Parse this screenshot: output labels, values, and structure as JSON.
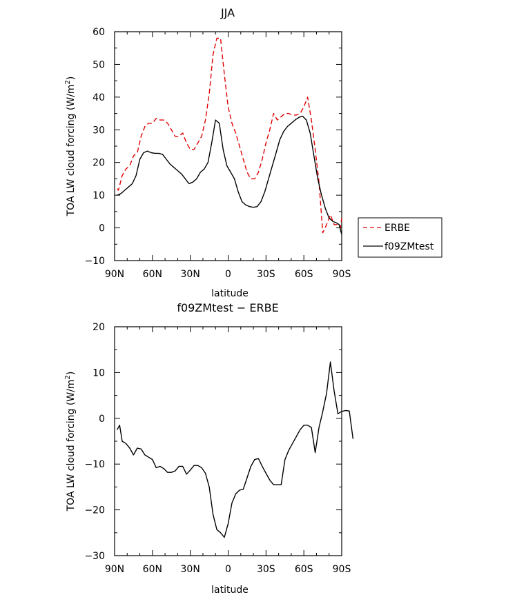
{
  "chart_data": [
    {
      "type": "line",
      "title": "JJA",
      "xlabel": "latitude",
      "ylabel": "TOA LW cloud forcing (W/m²)",
      "ylabel_parts": [
        "TOA LW cloud forcing (W/m",
        "2",
        ")"
      ],
      "xlim": [
        90,
        -90
      ],
      "ylim": [
        -10,
        60
      ],
      "xticks": [
        90,
        60,
        30,
        0,
        -30,
        -60,
        -90
      ],
      "xtick_labels": [
        "90N",
        "60N",
        "30N",
        "0",
        "30S",
        "60S",
        "90S"
      ],
      "yticks": [
        -10,
        0,
        10,
        20,
        30,
        40,
        50,
        60
      ],
      "ytick_labels": [
        "−10",
        "0",
        "10",
        "20",
        "30",
        "40",
        "50",
        "60"
      ],
      "legend_position": "right",
      "series": [
        {
          "name": "ERBE",
          "color": "#e00000",
          "dash": "dashed",
          "points": [
            [
              88,
              12
            ],
            [
              87,
              11.5
            ],
            [
              84,
              16
            ],
            [
              81,
              18
            ],
            [
              78,
              19
            ],
            [
              75,
              22
            ],
            [
              72,
              23
            ],
            [
              69,
              28
            ],
            [
              66,
              31
            ],
            [
              63,
              32
            ],
            [
              60,
              32
            ],
            [
              57,
              33.5
            ],
            [
              54,
              33
            ],
            [
              51,
              33
            ],
            [
              48,
              32
            ],
            [
              45,
              30
            ],
            [
              42,
              28
            ],
            [
              39,
              28
            ],
            [
              36,
              29
            ],
            [
              33,
              26
            ],
            [
              30,
              24
            ],
            [
              27,
              24
            ],
            [
              24,
              26
            ],
            [
              21,
              28
            ],
            [
              18,
              33
            ],
            [
              15,
              41
            ],
            [
              12,
              53
            ],
            [
              9,
              58
            ],
            [
              6,
              58
            ],
            [
              3,
              47
            ],
            [
              0,
              37
            ],
            [
              -3,
              32
            ],
            [
              -6,
              29
            ],
            [
              -9,
              25
            ],
            [
              -12,
              21
            ],
            [
              -15,
              17
            ],
            [
              -18,
              15
            ],
            [
              -21,
              15
            ],
            [
              -24,
              17
            ],
            [
              -27,
              21
            ],
            [
              -30,
              26
            ],
            [
              -33,
              30
            ],
            [
              -36,
              35
            ],
            [
              -39,
              33
            ],
            [
              -42,
              34
            ],
            [
              -45,
              35
            ],
            [
              -48,
              35
            ],
            [
              -51,
              34.5
            ],
            [
              -54,
              34.5
            ],
            [
              -57,
              35
            ],
            [
              -60,
              37
            ],
            [
              -63,
              40
            ],
            [
              -66,
              33
            ],
            [
              -69,
              24
            ],
            [
              -72,
              14
            ],
            [
              -75,
              -1.5
            ],
            [
              -78,
              1
            ],
            [
              -81,
              4
            ],
            [
              -84,
              1
            ],
            [
              -87,
              1
            ],
            [
              -89,
              0
            ],
            [
              -90,
              3
            ]
          ]
        },
        {
          "name": "f09ZMtest",
          "color": "#000000",
          "dash": "solid",
          "points": [
            [
              88,
              10
            ],
            [
              85,
              10.5
            ],
            [
              82,
              11.5
            ],
            [
              79,
              12.5
            ],
            [
              76,
              13.5
            ],
            [
              73,
              16
            ],
            [
              70,
              21
            ],
            [
              67,
              23
            ],
            [
              64,
              23.5
            ],
            [
              61,
              23
            ],
            [
              58,
              22.8
            ],
            [
              55,
              22.8
            ],
            [
              52,
              22.5
            ],
            [
              49,
              21
            ],
            [
              46,
              19.5
            ],
            [
              43,
              18.5
            ],
            [
              40,
              17.5
            ],
            [
              37,
              16.5
            ],
            [
              34,
              15
            ],
            [
              31,
              13.5
            ],
            [
              28,
              14
            ],
            [
              25,
              15
            ],
            [
              22,
              17
            ],
            [
              19,
              18
            ],
            [
              16,
              20
            ],
            [
              13,
              26
            ],
            [
              10,
              33
            ],
            [
              7,
              32
            ],
            [
              4,
              24
            ],
            [
              1,
              19
            ],
            [
              -2,
              17
            ],
            [
              -5,
              15
            ],
            [
              -8,
              11
            ],
            [
              -11,
              8
            ],
            [
              -14,
              7
            ],
            [
              -17,
              6.5
            ],
            [
              -20,
              6.3
            ],
            [
              -23,
              6.5
            ],
            [
              -26,
              8
            ],
            [
              -29,
              11
            ],
            [
              -32,
              15
            ],
            [
              -35,
              19
            ],
            [
              -38,
              23
            ],
            [
              -41,
              27
            ],
            [
              -44,
              29.5
            ],
            [
              -47,
              31
            ],
            [
              -50,
              32
            ],
            [
              -53,
              33
            ],
            [
              -56,
              33.8
            ],
            [
              -59,
              34.2
            ],
            [
              -62,
              33
            ],
            [
              -65,
              29
            ],
            [
              -68,
              22
            ],
            [
              -71,
              15
            ],
            [
              -74,
              10
            ],
            [
              -77,
              6
            ],
            [
              -80,
              3
            ],
            [
              -83,
              2
            ],
            [
              -86,
              1.5
            ],
            [
              -88,
              1
            ],
            [
              -90,
              -2
            ]
          ]
        }
      ]
    },
    {
      "type": "line",
      "title": "f09ZMtest − ERBE",
      "xlabel": "latitude",
      "ylabel": "TOA LW cloud forcing (W/m²)",
      "ylabel_parts": [
        "TOA LW cloud forcing (W/m",
        "2",
        ")"
      ],
      "xlim": [
        90,
        -90
      ],
      "ylim": [
        -30,
        20
      ],
      "xticks": [
        90,
        60,
        30,
        0,
        -30,
        -60,
        -90
      ],
      "xtick_labels": [
        "90N",
        "60N",
        "30N",
        "0",
        "30S",
        "60S",
        "90S"
      ],
      "yticks": [
        -30,
        -20,
        -10,
        0,
        10,
        20
      ],
      "ytick_labels": [
        "−30",
        "−20",
        "−10",
        "0",
        "10",
        "20"
      ],
      "series": [
        {
          "name": "",
          "color": "#000000",
          "dash": "solid",
          "points": [
            [
              88,
              -2.5
            ],
            [
              86,
              -1.5
            ],
            [
              84,
              -5
            ],
            [
              81,
              -5.5
            ],
            [
              78,
              -6.5
            ],
            [
              75,
              -8
            ],
            [
              72,
              -6.5
            ],
            [
              69,
              -6.7
            ],
            [
              66,
              -8
            ],
            [
              63,
              -8.5
            ],
            [
              60,
              -9
            ],
            [
              57,
              -10.8
            ],
            [
              54,
              -10.5
            ],
            [
              51,
              -11
            ],
            [
              48,
              -11.8
            ],
            [
              45,
              -11.8
            ],
            [
              42,
              -11.5
            ],
            [
              39,
              -10.5
            ],
            [
              36,
              -10.5
            ],
            [
              33,
              -12.2
            ],
            [
              30,
              -11.3
            ],
            [
              27,
              -10.3
            ],
            [
              24,
              -10.3
            ],
            [
              21,
              -10.8
            ],
            [
              18,
              -12
            ],
            [
              15,
              -15
            ],
            [
              12,
              -21
            ],
            [
              9,
              -24.3
            ],
            [
              6,
              -25
            ],
            [
              3,
              -26
            ],
            [
              0,
              -23
            ],
            [
              -3,
              -18.5
            ],
            [
              -6,
              -16.5
            ],
            [
              -9,
              -15.7
            ],
            [
              -12,
              -15.5
            ],
            [
              -15,
              -13
            ],
            [
              -18,
              -10.5
            ],
            [
              -21,
              -9
            ],
            [
              -24,
              -8.8
            ],
            [
              -27,
              -10.5
            ],
            [
              -30,
              -12
            ],
            [
              -33,
              -13.5
            ],
            [
              -36,
              -14.5
            ],
            [
              -39,
              -14.5
            ],
            [
              -42,
              -14.5
            ],
            [
              -45,
              -9
            ],
            [
              -48,
              -7
            ],
            [
              -51,
              -5.5
            ],
            [
              -54,
              -4
            ],
            [
              -57,
              -2.5
            ],
            [
              -60,
              -1.5
            ],
            [
              -63,
              -1.5
            ],
            [
              -66,
              -2
            ],
            [
              -69,
              -7.5
            ],
            [
              -72,
              -2
            ],
            [
              -75,
              1.5
            ],
            [
              -78,
              5.5
            ],
            [
              -81,
              12.3
            ],
            [
              -84,
              6
            ],
            [
              -87,
              1
            ],
            [
              -90,
              1.5
            ],
            [
              -93,
              1.7
            ],
            [
              -96,
              1.6
            ],
            [
              -99,
              -4.5
            ]
          ]
        }
      ]
    }
  ]
}
